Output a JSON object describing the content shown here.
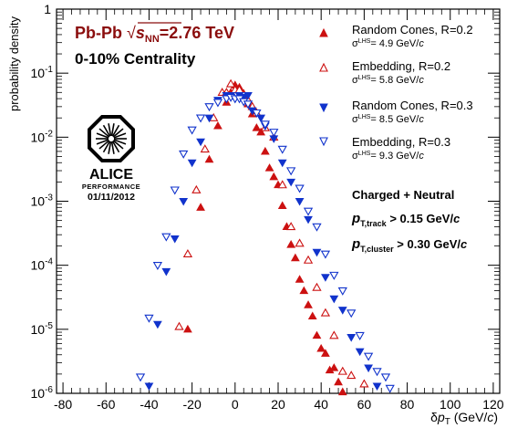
{
  "chart_data": {
    "type": "scatter",
    "title": "Pb-Pb √sNN=2.76 TeV",
    "title_main": "Pb-Pb ",
    "title_sqrt_s": "s",
    "title_sqrt_sub": "NN",
    "title_energy": "=2.76 TeV",
    "subtitle": "0-10% Centrality",
    "xlabel_delta": "δ",
    "xlabel_p": "p",
    "xlabel_sub": "T",
    "xlabel_unit_open": " (GeV/",
    "xlabel_unit_c": "c",
    "xlabel_unit_close": ")",
    "ylabel": "probability density",
    "xlim": [
      -83,
      123
    ],
    "ylim": [
      1e-06,
      1
    ],
    "yscale": "log",
    "grid": false,
    "legend_position": "top-right",
    "x_ticks": [
      -80,
      -60,
      -40,
      -20,
      0,
      20,
      40,
      60,
      80,
      100,
      120
    ],
    "y_ticks": [
      {
        "base": "10",
        "exp": "-6",
        "value": 1e-06
      },
      {
        "base": "10",
        "exp": "-5",
        "value": 1e-05
      },
      {
        "base": "10",
        "exp": "-4",
        "value": 0.0001
      },
      {
        "base": "10",
        "exp": "-3",
        "value": 0.001
      },
      {
        "base": "10",
        "exp": "-2",
        "value": 0.01
      },
      {
        "base": "10",
        "exp": "-1",
        "value": 0.1
      },
      {
        "base": "",
        "exp": "",
        "value": 1,
        "label": "1"
      }
    ],
    "series": [
      {
        "name": "Random Cones, R=0.2",
        "sigma_symbol": "σ",
        "sigma_sup": "LHS",
        "sigma_text": "= 4.9 GeV/",
        "sigma_unit_c": "c",
        "marker": "triangle-up",
        "filled": true,
        "color": "#cc1111",
        "points": [
          [
            -22,
            1e-05
          ],
          [
            -16,
            0.0008
          ],
          [
            -12,
            0.0045
          ],
          [
            -8,
            0.015
          ],
          [
            -4,
            0.035
          ],
          [
            -2,
            0.05
          ],
          [
            0,
            0.065
          ],
          [
            2,
            0.06
          ],
          [
            4,
            0.048
          ],
          [
            6,
            0.033
          ],
          [
            8,
            0.023
          ],
          [
            10,
            0.014
          ],
          [
            12,
            0.012
          ],
          [
            14,
            0.006
          ],
          [
            16,
            0.0033
          ],
          [
            18,
            0.0024
          ],
          [
            20,
            0.0018
          ],
          [
            22,
            0.00085
          ],
          [
            24,
            0.0004
          ],
          [
            26,
            0.00021
          ],
          [
            28,
            0.00013
          ],
          [
            30,
            6e-05
          ],
          [
            32,
            4e-05
          ],
          [
            34,
            2.4e-05
          ],
          [
            36,
            1.6e-05
          ],
          [
            38,
            8e-06
          ],
          [
            40,
            5e-06
          ],
          [
            42,
            4.2e-06
          ],
          [
            44,
            2.3e-06
          ],
          [
            46,
            2.5e-06
          ],
          [
            48,
            1.5e-06
          ],
          [
            50,
            1.05e-06
          ]
        ]
      },
      {
        "name": "Embedding, R=0.2",
        "sigma_symbol": "σ",
        "sigma_sup": "LHS",
        "sigma_text": "= 5.8 GeV/",
        "sigma_unit_c": "c",
        "marker": "triangle-up",
        "filled": false,
        "color": "#cc1111",
        "points": [
          [
            -26,
            1.1e-05
          ],
          [
            -22,
            0.00015
          ],
          [
            -18,
            0.0015
          ],
          [
            -14,
            0.0065
          ],
          [
            -10,
            0.02
          ],
          [
            -6,
            0.05
          ],
          [
            -4,
            0.05
          ],
          [
            -2,
            0.068
          ],
          [
            0,
            0.055
          ],
          [
            2,
            0.055
          ],
          [
            4,
            0.046
          ],
          [
            6,
            0.038
          ],
          [
            8,
            0.03
          ],
          [
            10,
            0.024
          ],
          [
            14,
            0.014
          ],
          [
            18,
            0.01
          ],
          [
            22,
            0.0018
          ],
          [
            26,
            0.0004
          ],
          [
            30,
            0.00022
          ],
          [
            34,
            0.00012
          ],
          [
            38,
            4.5e-05
          ],
          [
            42,
            1.8e-05
          ],
          [
            46,
            8e-06
          ],
          [
            50,
            2.2e-06
          ],
          [
            54,
            1.9e-06
          ],
          [
            60,
            1.4e-06
          ]
        ]
      },
      {
        "name": "Random Cones, R=0.3",
        "sigma_symbol": "σ",
        "sigma_sup": "LHS",
        "sigma_text": "= 8.5 GeV/",
        "sigma_unit_c": "c",
        "marker": "triangle-down",
        "filled": true,
        "color": "#1133cc",
        "points": [
          [
            -40,
            1.3e-06
          ],
          [
            -36,
            1.2e-05
          ],
          [
            -32,
            8e-05
          ],
          [
            -28,
            0.00026
          ],
          [
            -24,
            0.001
          ],
          [
            -20,
            0.004
          ],
          [
            -16,
            0.0085
          ],
          [
            -12,
            0.02
          ],
          [
            -8,
            0.038
          ],
          [
            -4,
            0.045
          ],
          [
            -2,
            0.045
          ],
          [
            0,
            0.04
          ],
          [
            2,
            0.045
          ],
          [
            4,
            0.042
          ],
          [
            6,
            0.045
          ],
          [
            8,
            0.026
          ],
          [
            12,
            0.02
          ],
          [
            14,
            0.015
          ],
          [
            18,
            0.0095
          ],
          [
            22,
            0.004
          ],
          [
            26,
            0.002
          ],
          [
            30,
            0.001
          ],
          [
            34,
            0.00052
          ],
          [
            38,
            0.00016
          ],
          [
            42,
            6.5e-05
          ],
          [
            46,
            3e-05
          ],
          [
            50,
            2e-05
          ],
          [
            54,
            7.5e-06
          ],
          [
            58,
            4.5e-06
          ],
          [
            62,
            2.5e-06
          ],
          [
            66,
            1.3e-06
          ]
        ]
      },
      {
        "name": "Embedding, R=0.3",
        "sigma_symbol": "σ",
        "sigma_sup": "LHS",
        "sigma_text": "= 9.3 GeV/",
        "sigma_unit_c": "c",
        "marker": "triangle-down",
        "filled": false,
        "color": "#1133cc",
        "points": [
          [
            -44,
            1.8e-06
          ],
          [
            -40,
            1.5e-05
          ],
          [
            -36,
            0.0001
          ],
          [
            -32,
            0.00028
          ],
          [
            -28,
            0.0015
          ],
          [
            -24,
            0.0055
          ],
          [
            -20,
            0.013
          ],
          [
            -16,
            0.02
          ],
          [
            -12,
            0.03
          ],
          [
            -8,
            0.035
          ],
          [
            -4,
            0.04
          ],
          [
            -2,
            0.042
          ],
          [
            0,
            0.04
          ],
          [
            2,
            0.04
          ],
          [
            4,
            0.036
          ],
          [
            6,
            0.033
          ],
          [
            10,
            0.024
          ],
          [
            14,
            0.016
          ],
          [
            18,
            0.012
          ],
          [
            22,
            0.0065
          ],
          [
            26,
            0.003
          ],
          [
            30,
            0.0016
          ],
          [
            34,
            0.0007
          ],
          [
            38,
            0.0004
          ],
          [
            42,
            0.00015
          ],
          [
            46,
            7e-05
          ],
          [
            50,
            4e-05
          ],
          [
            54,
            1.8e-05
          ],
          [
            58,
            8e-06
          ],
          [
            62,
            3.8e-06
          ],
          [
            66,
            2.2e-06
          ],
          [
            70,
            1.8e-06
          ],
          [
            72,
            1.2e-06
          ]
        ]
      }
    ],
    "annotations": {
      "charged_neutral": "Charged + Neutral",
      "track_p": "p",
      "track_sub": "T,track",
      "track_cut": " > 0.15 GeV/",
      "track_c": "c",
      "cluster_p": "p",
      "cluster_sub": "T,cluster",
      "cluster_cut": " > 0.30 GeV/",
      "cluster_c": "c"
    },
    "logo": {
      "name": "ALICE",
      "sub": "PERFORMANCE",
      "date": "01/11/2012"
    }
  }
}
